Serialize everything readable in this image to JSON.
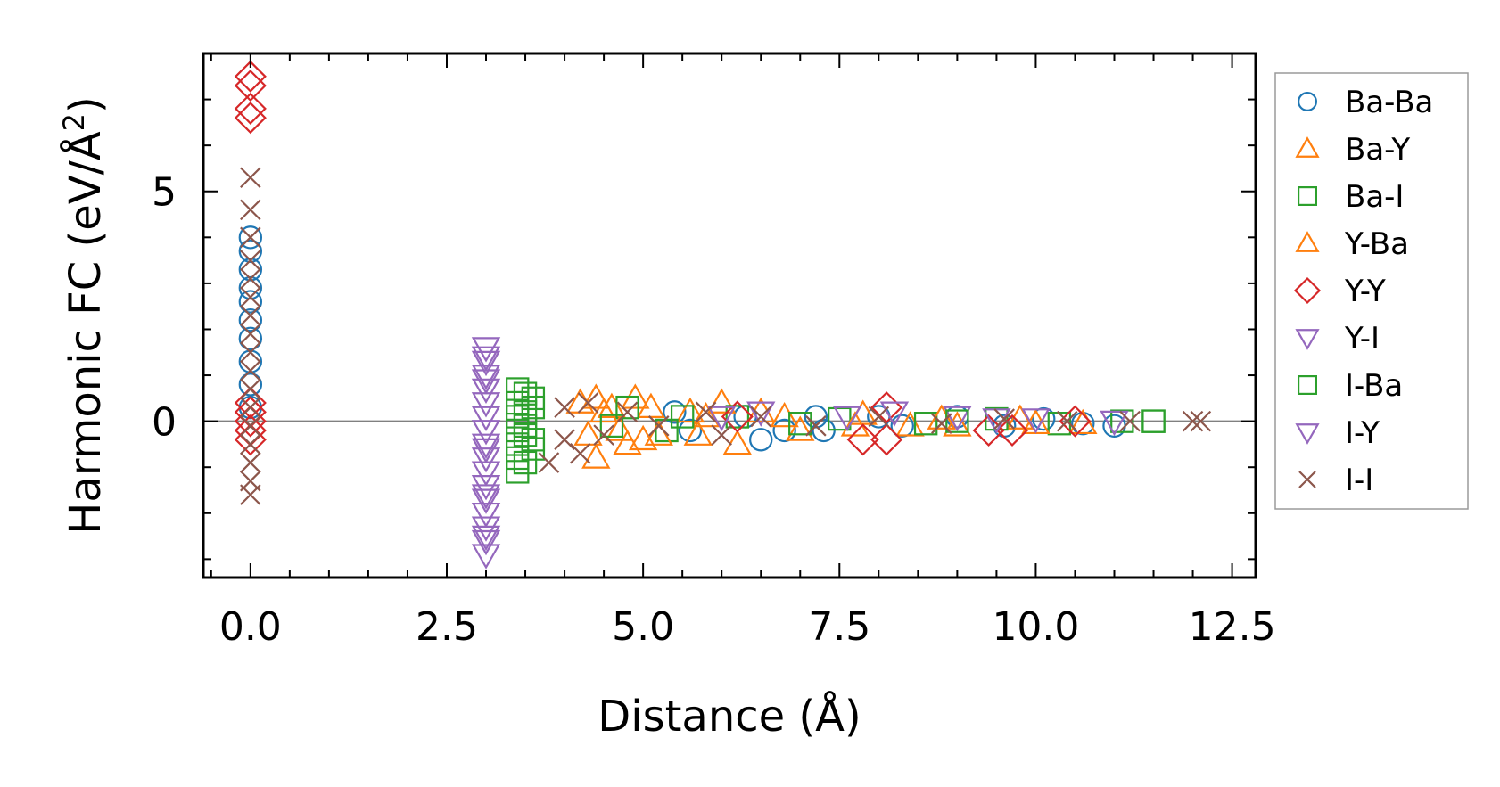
{
  "chart_data": {
    "type": "scatter",
    "title": "",
    "xlabel": "Distance (Å)",
    "ylabel_main": "Harmonic FC (eV/Å",
    "ylabel_sup": "2",
    "ylabel_close": ")",
    "xlim": [
      -0.6,
      12.8
    ],
    "ylim": [
      -3.4,
      8.0
    ],
    "xticks": [
      0.0,
      2.5,
      5.0,
      7.5,
      10.0,
      12.5
    ],
    "xtick_labels": [
      "0.0",
      "2.5",
      "5.0",
      "7.5",
      "10.0",
      "12.5"
    ],
    "yticks": [
      0,
      5
    ],
    "ytick_labels": [
      "0",
      "5"
    ],
    "zero_line": 0,
    "legend_position": "outside-right",
    "series": [
      {
        "name": "Ba-Ba",
        "marker": "circle",
        "color": "#1f77b4",
        "points": [
          [
            0.0,
            4.0
          ],
          [
            0.0,
            3.7
          ],
          [
            0.0,
            3.3
          ],
          [
            0.0,
            2.9
          ],
          [
            0.0,
            2.6
          ],
          [
            0.0,
            2.2
          ],
          [
            0.0,
            1.8
          ],
          [
            0.0,
            1.3
          ],
          [
            0.0,
            0.8
          ],
          [
            0.0,
            0.3
          ],
          [
            5.4,
            0.2
          ],
          [
            5.6,
            -0.2
          ],
          [
            6.3,
            0.1
          ],
          [
            6.5,
            -0.4
          ],
          [
            6.8,
            -0.2
          ],
          [
            7.2,
            0.1
          ],
          [
            7.3,
            -0.2
          ],
          [
            8.0,
            0.1
          ],
          [
            8.3,
            -0.1
          ],
          [
            9.0,
            0.1
          ],
          [
            9.6,
            -0.1
          ],
          [
            10.1,
            0.05
          ],
          [
            10.6,
            -0.05
          ],
          [
            11.0,
            -0.1
          ]
        ]
      },
      {
        "name": "Ba-Y",
        "marker": "triangle-up",
        "color": "#ff7f0e",
        "points": [
          [
            4.2,
            0.4
          ],
          [
            4.4,
            0.5
          ],
          [
            4.4,
            -0.8
          ],
          [
            4.6,
            0.3
          ],
          [
            4.8,
            -0.5
          ],
          [
            4.9,
            0.5
          ],
          [
            5.0,
            -0.4
          ],
          [
            5.1,
            0.3
          ],
          [
            5.6,
            0.2
          ],
          [
            5.7,
            -0.3
          ],
          [
            6.0,
            0.4
          ],
          [
            6.2,
            -0.5
          ],
          [
            6.5,
            0.2
          ],
          [
            7.0,
            -0.2
          ],
          [
            7.8,
            0.15
          ],
          [
            8.4,
            -0.1
          ],
          [
            9.0,
            -0.1
          ],
          [
            9.8,
            0.05
          ],
          [
            10.6,
            -0.05
          ]
        ]
      },
      {
        "name": "Ba-I",
        "marker": "square",
        "color": "#2ca02c",
        "points": [
          [
            3.4,
            0.7
          ],
          [
            3.4,
            0.4
          ],
          [
            3.4,
            0.1
          ],
          [
            3.4,
            -0.2
          ],
          [
            3.4,
            -0.5
          ],
          [
            3.4,
            -0.8
          ],
          [
            3.4,
            -1.1
          ],
          [
            3.5,
            0.6
          ],
          [
            3.5,
            -0.3
          ],
          [
            3.5,
            -0.9
          ],
          [
            3.6,
            0.5
          ],
          [
            3.6,
            -0.6
          ],
          [
            4.8,
            0.3
          ],
          [
            5.3,
            -0.2
          ],
          [
            6.2,
            0.1
          ],
          [
            7.5,
            0.05
          ],
          [
            8.6,
            -0.05
          ],
          [
            9.5,
            0.05
          ],
          [
            10.3,
            -0.05
          ],
          [
            11.1,
            0.0
          ],
          [
            11.5,
            0.0
          ]
        ]
      },
      {
        "name": "Y-Ba",
        "marker": "triangle-up",
        "color": "#ff7f0e",
        "points": [
          [
            4.3,
            -0.3
          ],
          [
            4.5,
            0.2
          ],
          [
            4.7,
            -0.2
          ],
          [
            5.2,
            -0.3
          ],
          [
            5.8,
            0.1
          ],
          [
            6.8,
            0.1
          ],
          [
            7.7,
            -0.1
          ],
          [
            8.8,
            0.05
          ],
          [
            10.0,
            -0.05
          ]
        ]
      },
      {
        "name": "Y-Y",
        "marker": "diamond",
        "color": "#d62728",
        "points": [
          [
            0.0,
            7.5
          ],
          [
            0.0,
            7.3
          ],
          [
            0.0,
            6.8
          ],
          [
            0.0,
            6.6
          ],
          [
            0.0,
            0.4
          ],
          [
            0.0,
            0.2
          ],
          [
            0.0,
            0.0
          ],
          [
            0.0,
            -0.2
          ],
          [
            0.0,
            -0.4
          ],
          [
            6.2,
            0.1
          ],
          [
            7.8,
            -0.4
          ],
          [
            8.1,
            0.3
          ],
          [
            8.1,
            -0.4
          ],
          [
            9.4,
            -0.2
          ],
          [
            9.7,
            -0.2
          ],
          [
            10.5,
            0.0
          ]
        ]
      },
      {
        "name": "Y-I",
        "marker": "triangle-down",
        "color": "#9467bd",
        "points": [
          [
            3.0,
            1.6
          ],
          [
            3.0,
            1.3
          ],
          [
            3.0,
            1.0
          ],
          [
            3.0,
            0.7
          ],
          [
            3.0,
            0.4
          ],
          [
            3.0,
            0.1
          ],
          [
            3.0,
            -0.2
          ],
          [
            3.0,
            -0.5
          ],
          [
            3.0,
            -0.8
          ],
          [
            3.0,
            -1.1
          ],
          [
            3.0,
            -1.4
          ],
          [
            3.0,
            -1.7
          ],
          [
            3.0,
            -2.0
          ],
          [
            3.0,
            -2.3
          ],
          [
            3.0,
            -2.6
          ],
          [
            3.0,
            -2.9
          ],
          [
            6.5,
            0.2
          ],
          [
            7.6,
            0.1
          ],
          [
            8.2,
            0.2
          ],
          [
            9.0,
            0.1
          ],
          [
            10.0,
            0.05
          ],
          [
            11.0,
            0.0
          ]
        ]
      },
      {
        "name": "I-Ba",
        "marker": "square",
        "color": "#2ca02c",
        "points": [
          [
            3.5,
            0.2
          ],
          [
            3.5,
            -0.1
          ],
          [
            3.6,
            0.3
          ],
          [
            3.6,
            -0.4
          ],
          [
            4.6,
            -0.1
          ],
          [
            5.5,
            0.1
          ],
          [
            7.0,
            -0.05
          ],
          [
            9.0,
            0.0
          ],
          [
            11.5,
            0.0
          ]
        ]
      },
      {
        "name": "I-Y",
        "marker": "triangle-down",
        "color": "#9467bd",
        "points": [
          [
            3.0,
            1.4
          ],
          [
            3.0,
            0.9
          ],
          [
            3.0,
            -0.6
          ],
          [
            3.0,
            -1.6
          ],
          [
            3.0,
            -2.5
          ],
          [
            6.0,
            0.1
          ],
          [
            9.5,
            0.05
          ]
        ]
      },
      {
        "name": "I-I",
        "marker": "x",
        "color": "#8c564b",
        "points": [
          [
            0.0,
            5.3
          ],
          [
            0.0,
            4.6
          ],
          [
            0.0,
            4.0
          ],
          [
            0.0,
            3.5
          ],
          [
            0.0,
            3.1
          ],
          [
            0.0,
            2.7
          ],
          [
            0.0,
            2.3
          ],
          [
            0.0,
            1.9
          ],
          [
            0.0,
            1.5
          ],
          [
            0.0,
            1.1
          ],
          [
            0.0,
            0.7
          ],
          [
            0.0,
            0.3
          ],
          [
            0.0,
            -0.1
          ],
          [
            0.0,
            -0.5
          ],
          [
            0.0,
            -0.9
          ],
          [
            0.0,
            -1.3
          ],
          [
            0.0,
            -1.6
          ],
          [
            3.8,
            -0.9
          ],
          [
            4.0,
            0.3
          ],
          [
            4.0,
            -0.4
          ],
          [
            4.2,
            -0.7
          ],
          [
            4.3,
            0.4
          ],
          [
            4.5,
            -0.3
          ],
          [
            4.8,
            0.2
          ],
          [
            5.2,
            -0.1
          ],
          [
            5.8,
            0.2
          ],
          [
            6.0,
            -0.3
          ],
          [
            6.5,
            0.1
          ],
          [
            7.2,
            -0.1
          ],
          [
            8.0,
            0.1
          ],
          [
            8.8,
            -0.05
          ],
          [
            9.6,
            0.05
          ],
          [
            10.4,
            0.0
          ],
          [
            11.2,
            0.0
          ],
          [
            12.0,
            0.0
          ],
          [
            12.1,
            0.0
          ]
        ]
      }
    ]
  }
}
